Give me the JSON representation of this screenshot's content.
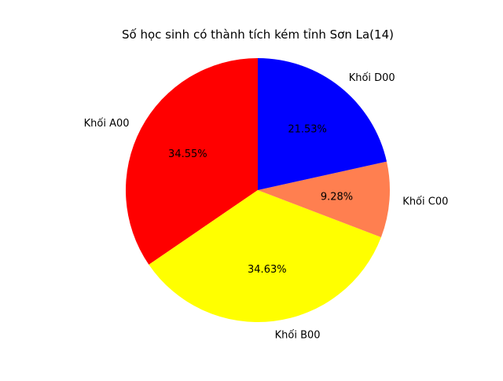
{
  "chart_data": {
    "type": "pie",
    "title": "Số học sinh có thành tích kém tỉnh Sơn La(14)",
    "start_angle_deg": 90,
    "counterclock": false,
    "slices": [
      {
        "label": "Khối A00",
        "percent_label": "34.55%",
        "value": 34.55,
        "color": "#ff0000"
      },
      {
        "label": "Khối B00",
        "percent_label": "34.63%",
        "value": 34.63,
        "color": "#ffff00"
      },
      {
        "label": "Khối C00",
        "percent_label": "9.28%",
        "value": 9.28,
        "color": "#ff7f50"
      },
      {
        "label": "Khối D00",
        "percent_label": "21.53%",
        "value": 21.53,
        "color": "#0000ff"
      }
    ]
  }
}
